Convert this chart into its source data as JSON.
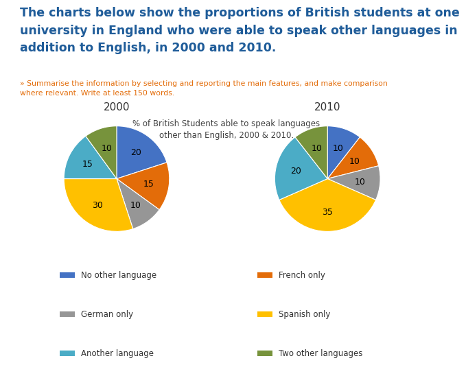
{
  "title_main": "The charts below show the proportions of British students at one\nuniversity in England who were able to speak other languages in\naddition to English, in 2000 and 2010.",
  "subtitle": "» Summarise the information by selecting and reporting the main features, and make comparison\nwhere relevant. Write at least 150 words.",
  "chart_title": "% of British Students able to speak languages\nother than English, 2000 & 2010.",
  "year_labels": [
    "2000",
    "2010"
  ],
  "categories": [
    "No other language",
    "French only",
    "German only",
    "Spanish only",
    "Another language",
    "Two other languages"
  ],
  "colors": [
    "#4472C4",
    "#E36C09",
    "#969696",
    "#FFC000",
    "#4BACC6",
    "#77933C"
  ],
  "values_2000": [
    20,
    15,
    10,
    30,
    15,
    10
  ],
  "values_2010": [
    10,
    10,
    10,
    35,
    20,
    10
  ],
  "bg_color": "#FFFFFF",
  "title_color": "#1F5C99",
  "subtitle_color": "#E36C09",
  "chart_title_color": "#404040"
}
